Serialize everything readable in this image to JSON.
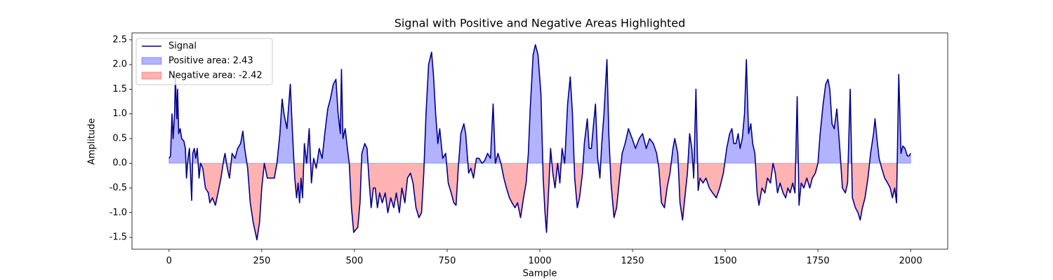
{
  "chart_data": {
    "type": "line",
    "title": "Signal with Positive and Negative Areas Highlighted",
    "x_label": "Sample",
    "y_label": "Amplitude",
    "xlim": [
      -100,
      2100
    ],
    "ylim": [
      -1.74,
      2.64
    ],
    "xticks": [
      0,
      250,
      500,
      750,
      1000,
      1250,
      1500,
      1750,
      2000
    ],
    "yticks": [
      -1.5,
      {
        "value": -1.0,
        "label": "-1.0"
      },
      -0.5,
      {
        "value": 0,
        "label": "0.0"
      },
      0.5,
      {
        "value": 1,
        "label": "1.0"
      },
      1.5,
      {
        "value": 2,
        "label": "2.0"
      },
      2.5
    ],
    "legend": "upper left",
    "x": [
      0,
      4,
      8,
      11,
      15,
      17,
      21,
      23,
      26,
      30,
      34,
      40,
      44,
      47,
      51,
      55,
      61,
      64,
      68,
      72,
      76,
      81,
      85,
      91,
      98,
      106,
      110,
      117,
      125,
      132,
      140,
      148,
      151,
      157,
      163,
      170,
      178,
      185,
      193,
      199,
      204,
      212,
      219,
      227,
      237,
      244,
      250,
      257,
      265,
      276,
      284,
      291,
      299,
      305,
      310,
      318,
      327,
      333,
      339,
      344,
      348,
      352,
      356,
      360,
      365,
      371,
      378,
      384,
      390,
      397,
      405,
      413,
      420,
      428,
      435,
      443,
      450,
      456,
      462,
      465,
      469,
      475,
      481,
      486,
      492,
      498,
      503,
      509,
      515,
      520,
      528,
      534,
      539,
      545,
      551,
      556,
      562,
      568,
      575,
      583,
      590,
      598,
      606,
      613,
      621,
      628,
      636,
      643,
      651,
      658,
      666,
      674,
      681,
      687,
      693,
      700,
      708,
      713,
      719,
      725,
      730,
      738,
      746,
      753,
      761,
      768,
      774,
      780,
      787,
      795,
      800,
      808,
      814,
      821,
      829,
      836,
      844,
      851,
      859,
      867,
      874,
      880,
      887,
      895,
      903,
      910,
      918,
      925,
      933,
      940,
      948,
      956,
      963,
      969,
      974,
      982,
      988,
      995,
      1003,
      1009,
      1014,
      1018,
      1024,
      1029,
      1035,
      1041,
      1048,
      1054,
      1060,
      1067,
      1075,
      1082,
      1088,
      1094,
      1101,
      1107,
      1115,
      1120,
      1128,
      1133,
      1139,
      1145,
      1150,
      1156,
      1162,
      1167,
      1173,
      1181,
      1186,
      1192,
      1200,
      1207,
      1215,
      1222,
      1230,
      1239,
      1249,
      1258,
      1268,
      1277,
      1287,
      1296,
      1306,
      1315,
      1321,
      1328,
      1336,
      1343,
      1351,
      1359,
      1364,
      1372,
      1378,
      1385,
      1391,
      1398,
      1404,
      1410,
      1415,
      1421,
      1427,
      1432,
      1440,
      1448,
      1457,
      1466,
      1476,
      1485,
      1495,
      1504,
      1512,
      1518,
      1523,
      1529,
      1535,
      1540,
      1546,
      1552,
      1557,
      1563,
      1569,
      1574,
      1580,
      1586,
      1591,
      1599,
      1607,
      1614,
      1622,
      1629,
      1635,
      1641,
      1648,
      1656,
      1663,
      1669,
      1675,
      1682,
      1688,
      1694,
      1699,
      1705,
      1712,
      1720,
      1728,
      1735,
      1743,
      1750,
      1756,
      1764,
      1771,
      1777,
      1782,
      1788,
      1794,
      1801,
      1809,
      1816,
      1824,
      1830,
      1837,
      1843,
      1851,
      1858,
      1864,
      1870,
      1877,
      1885,
      1892,
      1900,
      1904,
      1909,
      1915,
      1922,
      1930,
      1938,
      1945,
      1951,
      1957,
      1962,
      1968,
      1974,
      1979,
      1985,
      1991,
      1996,
      2000
    ],
    "series": [
      {
        "name": "Signal",
        "color": "#00008b",
        "values": [
          0.1,
          0.15,
          1.0,
          0.5,
          1.0,
          1.75,
          0.9,
          1.5,
          0.6,
          0.7,
          0.5,
          0.45,
          0.3,
          -0.3,
          0.1,
          0.3,
          -0.75,
          0.2,
          0.3,
          0.1,
          0.3,
          -0.3,
          0.0,
          -0.1,
          -0.5,
          -0.6,
          -0.8,
          -0.7,
          -0.85,
          -0.6,
          -0.3,
          0.1,
          0.2,
          -0.1,
          -0.3,
          0.2,
          0.1,
          0.3,
          0.4,
          0.65,
          0.3,
          -0.1,
          -0.8,
          -1.2,
          -1.55,
          -1.2,
          -0.5,
          0.0,
          -0.3,
          -0.3,
          -0.3,
          0.0,
          0.6,
          1.3,
          1.0,
          0.7,
          1.6,
          0.6,
          -0.3,
          -0.7,
          -0.4,
          -0.8,
          -0.3,
          -0.7,
          0.4,
          0.0,
          0.7,
          -0.4,
          0.1,
          -0.1,
          0.3,
          0.1,
          0.6,
          1.1,
          1.3,
          1.6,
          1.7,
          1.0,
          0.6,
          1.9,
          0.5,
          0.7,
          0.3,
          0.0,
          -0.9,
          -1.4,
          -1.35,
          -1.3,
          -0.8,
          0.2,
          0.4,
          0.3,
          -0.3,
          -0.9,
          -0.5,
          -0.5,
          -0.9,
          -0.6,
          -0.8,
          -0.6,
          -1.0,
          -0.7,
          -0.9,
          -0.6,
          -1.0,
          -0.5,
          -0.8,
          -0.3,
          -0.2,
          -0.4,
          -0.9,
          -1.1,
          -1.0,
          -0.2,
          1.0,
          2.0,
          2.25,
          1.8,
          1.0,
          0.4,
          0.7,
          0.1,
          0.2,
          -0.4,
          -0.6,
          -0.8,
          -0.85,
          -0.1,
          0.6,
          0.8,
          0.6,
          -0.2,
          -0.1,
          -0.3,
          0.1,
          0.1,
          0.0,
          0.05,
          0.2,
          0.1,
          1.2,
          0.0,
          0.2,
          0.0,
          -0.3,
          -0.5,
          -0.7,
          -0.8,
          -0.9,
          -0.8,
          -1.1,
          -0.7,
          -0.4,
          0.2,
          1.1,
          2.2,
          2.4,
          2.2,
          1.4,
          -0.3,
          -1.0,
          -1.4,
          -0.5,
          0.3,
          -0.2,
          -0.5,
          0.0,
          -0.4,
          0.3,
          0.0,
          1.2,
          1.75,
          1.0,
          -0.3,
          -0.9,
          -0.7,
          -0.2,
          0.4,
          0.9,
          0.3,
          0.3,
          0.8,
          1.2,
          0.1,
          -0.3,
          0.4,
          1.0,
          2.1,
          0.6,
          -0.4,
          -1.1,
          -0.9,
          -0.3,
          0.2,
          0.4,
          0.7,
          0.5,
          0.3,
          0.5,
          0.6,
          0.3,
          0.5,
          0.4,
          0.2,
          -0.1,
          -0.8,
          -0.9,
          -0.5,
          -0.2,
          0.3,
          0.5,
          0.2,
          -0.8,
          -1.15,
          -0.7,
          -0.2,
          0.6,
          0.3,
          -0.3,
          1.5,
          -0.55,
          -0.3,
          -0.4,
          -0.3,
          -0.5,
          -0.6,
          -0.7,
          -0.5,
          -0.2,
          0.3,
          0.6,
          0.7,
          0.4,
          0.4,
          0.6,
          0.3,
          0.5,
          1.0,
          2.1,
          0.6,
          0.8,
          0.4,
          0.2,
          -0.6,
          -0.85,
          -0.5,
          -0.6,
          -0.3,
          -0.4,
          0.0,
          -0.2,
          -0.6,
          -0.4,
          -0.6,
          -0.7,
          -0.5,
          -0.6,
          -0.4,
          -0.6,
          1.35,
          -0.85,
          -0.4,
          -0.5,
          -0.3,
          -0.5,
          -0.3,
          -0.2,
          0.0,
          0.6,
          1.2,
          1.6,
          1.7,
          1.5,
          0.8,
          0.7,
          1.1,
          0.3,
          -0.5,
          -0.6,
          -0.4,
          1.5,
          -0.7,
          -0.9,
          -1.0,
          -1.15,
          -0.9,
          -0.7,
          -0.3,
          0.2,
          0.6,
          0.9,
          0.5,
          0.1,
          -0.1,
          -0.3,
          -0.4,
          -0.5,
          -0.7,
          -0.5,
          -0.8,
          1.8,
          0.2,
          0.35,
          0.3,
          0.15,
          0.15,
          0.2
        ]
      }
    ],
    "positive_fill": {
      "name": "Positive area: 2.43",
      "color": "#0000ff"
    },
    "negative_fill": {
      "name": "Negative area: -2.42",
      "color": "#ff0000"
    }
  }
}
